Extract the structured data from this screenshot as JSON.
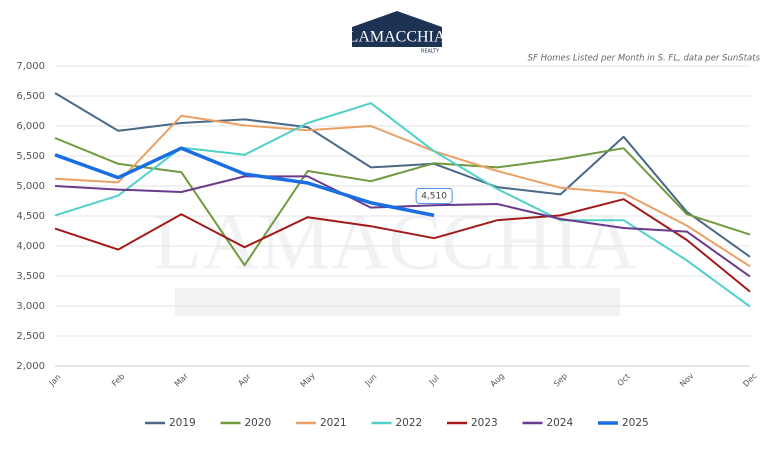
{
  "logo": {
    "name": "LAMACCHIA",
    "tagline": "REALTY"
  },
  "chart_data": {
    "type": "line",
    "subtitle": "SF Homes Listed per Month in S. FL, data per SunStats",
    "categories": [
      "Jan",
      "Feb",
      "Mar",
      "Apr",
      "May",
      "Jun",
      "Jul",
      "Aug",
      "Sep",
      "Oct",
      "Nov",
      "Dec"
    ],
    "ylim": [
      2000,
      7000
    ],
    "yticks": [
      {
        "value": 2000,
        "label": "2,000"
      },
      {
        "value": 2500,
        "label": "2,500"
      },
      {
        "value": 3000,
        "label": "3,000"
      },
      {
        "value": 3500,
        "label": "3,500"
      },
      {
        "value": 4000,
        "label": "4,000"
      },
      {
        "value": 4500,
        "label": "4,500"
      },
      {
        "value": 5000,
        "label": "5,000"
      },
      {
        "value": 5500,
        "label": "5,500"
      },
      {
        "value": 6000,
        "label": "6,000"
      },
      {
        "value": 6500,
        "label": "6,500"
      },
      {
        "value": 7000,
        "label": "7,000"
      }
    ],
    "grid": true,
    "series": [
      {
        "name": "2019",
        "color": "#4a6888",
        "values": [
          6550,
          5920,
          6050,
          6110,
          5980,
          5310,
          5370,
          4980,
          4860,
          5820,
          4570,
          3820
        ]
      },
      {
        "name": "2020",
        "color": "#6f9a3e",
        "values": [
          5800,
          5370,
          5230,
          3680,
          5250,
          5080,
          5380,
          5310,
          5450,
          5630,
          4530,
          4190
        ]
      },
      {
        "name": "2021",
        "color": "#eba064",
        "values": [
          5120,
          5060,
          6170,
          6010,
          5930,
          6000,
          5580,
          5250,
          4970,
          4880,
          4340,
          3660
        ]
      },
      {
        "name": "2022",
        "color": "#4fd0c8",
        "values": [
          4510,
          4840,
          5640,
          5520,
          6050,
          6380,
          5580,
          4950,
          4430,
          4430,
          3760,
          2990
        ]
      },
      {
        "name": "2023",
        "color": "#a31a1a",
        "values": [
          4290,
          3940,
          4530,
          3980,
          4480,
          4330,
          4130,
          4430,
          4510,
          4780,
          4100,
          3240
        ]
      },
      {
        "name": "2024",
        "color": "#6a3b8c",
        "values": [
          5000,
          4940,
          4900,
          5160,
          5160,
          4640,
          4680,
          4700,
          4450,
          4300,
          4240,
          3490
        ]
      },
      {
        "name": "2025",
        "color": "#1a6ee3",
        "width": 3.5,
        "values": [
          5520,
          5140,
          5630,
          5200,
          5050,
          4720,
          4510,
          null,
          null,
          null,
          null,
          null
        ],
        "value_labels": [
          null,
          null,
          null,
          null,
          null,
          null,
          "4,510",
          null,
          null,
          null,
          null,
          null
        ]
      }
    ]
  }
}
